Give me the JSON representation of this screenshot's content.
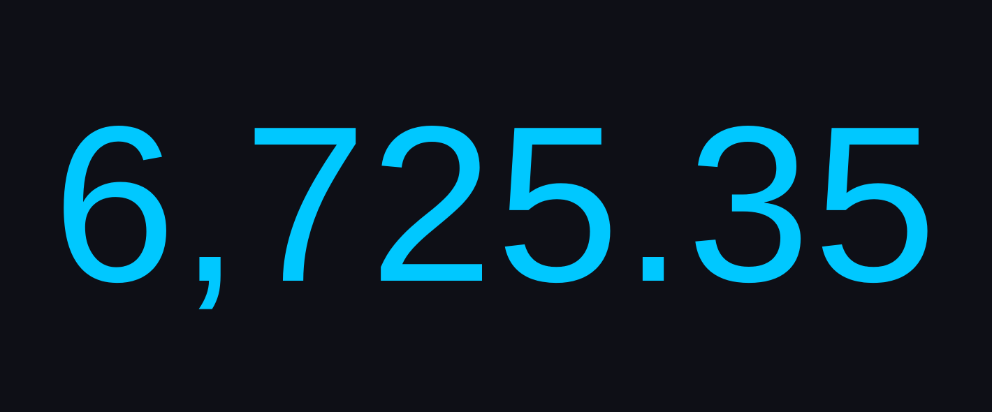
{
  "display": {
    "value": "6,725.35",
    "color": "#00c8ff",
    "background": "#0e0f16"
  }
}
